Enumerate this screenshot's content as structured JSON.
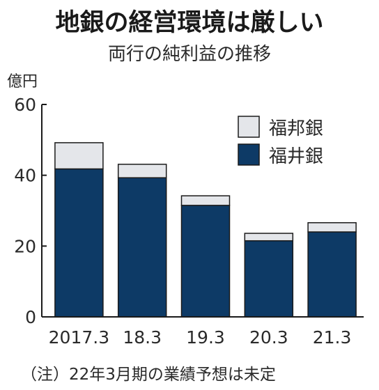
{
  "title": "地銀の経営環境は厳しい",
  "subtitle": "両行の純利益の推移",
  "unit_label": "億円",
  "note": "（注）22年3月期の業績予想は未定",
  "colors": {
    "fukui": "#0d3a66",
    "fukuho": "#e4e6ea",
    "outline": "#1a1a1a"
  },
  "chart_data": {
    "type": "bar",
    "stacked": true,
    "categories": [
      "2017.3",
      "18.3",
      "19.3",
      "20.3",
      "21.3"
    ],
    "series": [
      {
        "name": "福井銀",
        "values": [
          41.8,
          39.3,
          31.5,
          21.5,
          24.0
        ]
      },
      {
        "name": "福邦銀",
        "values": [
          7.4,
          3.8,
          2.7,
          2.1,
          2.6
        ]
      }
    ],
    "legend": [
      "福邦銀",
      "福井銀"
    ],
    "legend_placement": "top-right",
    "ylim": [
      0,
      60
    ],
    "yticks": [
      0,
      20,
      40,
      60
    ],
    "grid": false
  }
}
